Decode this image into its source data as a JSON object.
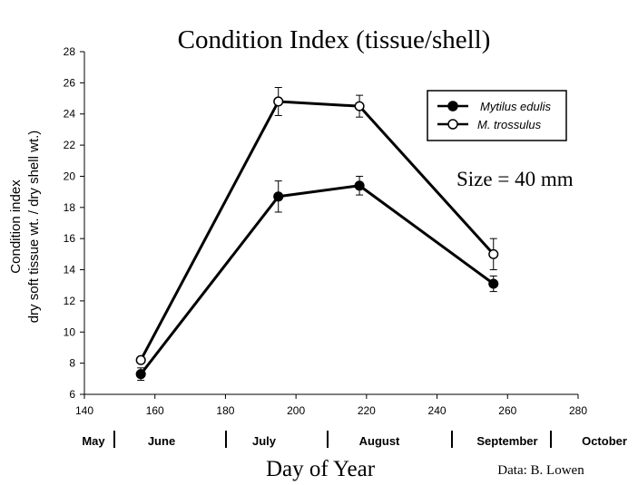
{
  "chart_data": {
    "type": "line",
    "title": "Condition Index (tissue/shell)",
    "ylabel_lines": [
      "Condition index",
      "dry soft tissue wt. / dry shell wt.)"
    ],
    "xlabel": "Day of Year",
    "xlim": [
      140,
      280
    ],
    "ylim": [
      6,
      28
    ],
    "xticks": [
      "140",
      "160",
      "180",
      "200",
      "220",
      "240",
      "260",
      "280"
    ],
    "yticks": [
      "6",
      "8",
      "10",
      "12",
      "14",
      "16",
      "18",
      "20",
      "22",
      "24",
      "26",
      "28"
    ],
    "x": [
      156,
      195,
      218,
      256
    ],
    "series": [
      {
        "name": "Mytilus edulis",
        "marker": "filled-circle",
        "values": [
          7.3,
          18.7,
          19.4,
          13.1
        ],
        "error": [
          [
            0.4,
            0.4
          ],
          [
            1.0,
            1.0
          ],
          [
            0.6,
            0.6
          ],
          [
            0.5,
            0.5
          ]
        ]
      },
      {
        "name": "M. trossulus",
        "marker": "open-circle",
        "values": [
          8.2,
          24.8,
          24.5,
          15.0
        ],
        "error": [
          [
            0,
            0
          ],
          [
            0.9,
            0.9
          ],
          [
            0.7,
            0.7
          ],
          [
            1.0,
            1.0
          ]
        ]
      }
    ],
    "legend_position": "top-right",
    "grid": false,
    "annotation": "Size = 40 mm",
    "credit": "Data: B. Lowen",
    "months": [
      "May",
      "June",
      "July",
      "August",
      "September",
      "October"
    ]
  }
}
